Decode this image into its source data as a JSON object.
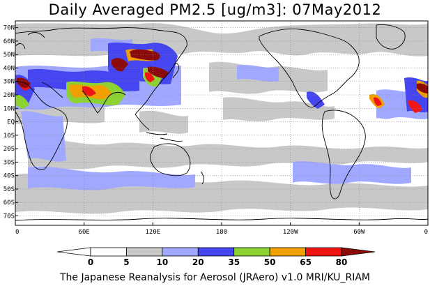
{
  "title": "Daily Averaged PM2.5 [ug/m3]: 07May2012",
  "footer": "The Japanese Reanalysis for Aerosol (JRAero) v1.0 MRI/KU_RIAM",
  "lat_labels": [
    "70N",
    "60N",
    "50N",
    "40N",
    "30N",
    "20N",
    "10N",
    "EQ",
    "10S",
    "20S",
    "30S",
    "40S",
    "50S",
    "60S",
    "70S"
  ],
  "lat_values": [
    70,
    60,
    50,
    40,
    30,
    20,
    10,
    0,
    -10,
    -20,
    -30,
    -40,
    -50,
    -60,
    -70
  ],
  "lon_labels": [
    "0",
    "60E",
    "120E",
    "180",
    "120W",
    "60W",
    "0"
  ],
  "lon_values": [
    0,
    60,
    120,
    180,
    240,
    300,
    360
  ],
  "colorbar": {
    "labels": [
      "0",
      "5",
      "10",
      "20",
      "35",
      "50",
      "65",
      "80"
    ],
    "colors": [
      "#ffffff",
      "#c8c8c8",
      "#a0a8ff",
      "#4646f0",
      "#8cd232",
      "#f0a000",
      "#f01414",
      "#8b0a0a"
    ]
  },
  "legend_colors": {
    "bin_0_5": "#ffffff",
    "bin_5_10": "#c8c8c8",
    "bin_10_20": "#a0a8ff",
    "bin_20_35": "#4646f0",
    "bin_35_50": "#8cd232",
    "bin_50_65": "#f0a000",
    "bin_65_80": "#f01414",
    "bin_80_plus": "#8b0a0a"
  }
}
